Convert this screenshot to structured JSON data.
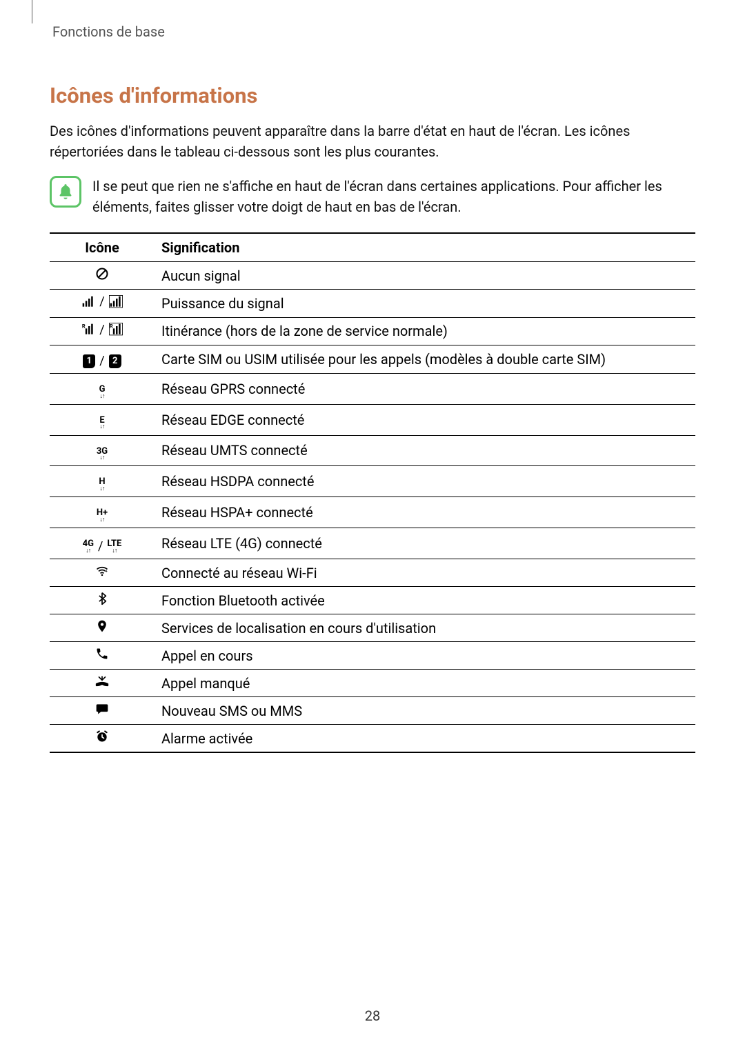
{
  "breadcrumb": "Fonctions de base",
  "section_title": "Icônes d'informations",
  "intro": "Des icônes d'informations peuvent apparaître dans la barre d'état en haut de l'écran. Les icônes répertoriées dans le tableau ci-dessous sont les plus courantes.",
  "note": "Il se peut que rien ne s'affiche en haut de l'écran dans certaines applications. Pour afficher les éléments, faites glisser votre doigt de haut en bas de l'écran.",
  "colors": {
    "accent": "#c77448",
    "note_border": "#5cc466",
    "text": "#111111",
    "breadcrumb": "#555555"
  },
  "table": {
    "headers": {
      "icon": "Icône",
      "meaning": "Signification"
    },
    "rows": [
      {
        "icon_key": "no-signal",
        "meaning": "Aucun signal"
      },
      {
        "icon_key": "signal",
        "meaning": "Puissance du signal"
      },
      {
        "icon_key": "roaming",
        "meaning": "Itinérance (hors de la zone de service normale)"
      },
      {
        "icon_key": "sim",
        "meaning": "Carte SIM ou USIM utilisée pour les appels (modèles à double carte SIM)"
      },
      {
        "icon_key": "gprs",
        "label": "G",
        "meaning": "Réseau GPRS connecté"
      },
      {
        "icon_key": "edge",
        "label": "E",
        "meaning": "Réseau EDGE connecté"
      },
      {
        "icon_key": "umts",
        "label": "3G",
        "meaning": "Réseau UMTS connecté"
      },
      {
        "icon_key": "hsdpa",
        "label": "H",
        "meaning": "Réseau HSDPA connecté"
      },
      {
        "icon_key": "hspa",
        "label": "H+",
        "meaning": "Réseau HSPA+ connecté"
      },
      {
        "icon_key": "lte",
        "label1": "4G",
        "label2": "LTE",
        "meaning": "Réseau LTE (4G) connecté"
      },
      {
        "icon_key": "wifi",
        "meaning": "Connecté au réseau Wi-Fi"
      },
      {
        "icon_key": "bluetooth",
        "meaning": "Fonction Bluetooth activée"
      },
      {
        "icon_key": "location",
        "meaning": "Services de localisation en cours d'utilisation"
      },
      {
        "icon_key": "call",
        "meaning": "Appel en cours"
      },
      {
        "icon_key": "missed",
        "meaning": "Appel manqué"
      },
      {
        "icon_key": "sms",
        "meaning": "Nouveau SMS ou MMS"
      },
      {
        "icon_key": "alarm",
        "meaning": "Alarme activée"
      }
    ]
  },
  "page_number": "28"
}
